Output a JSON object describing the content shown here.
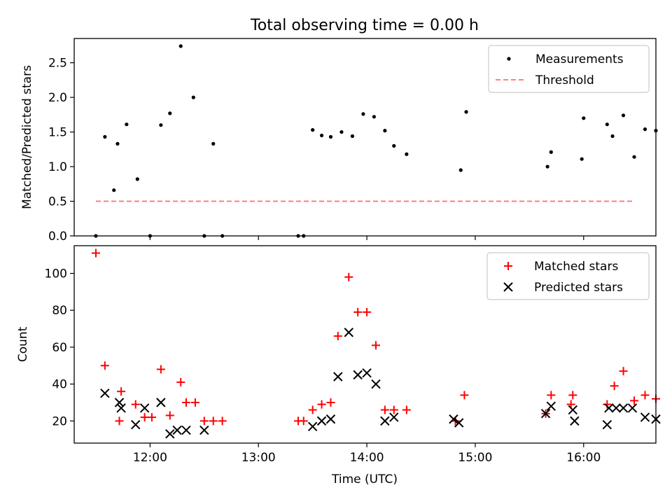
{
  "chart_data": [
    {
      "type": "scatter",
      "title": "Total observing time = 0.00 h",
      "xlabel": "",
      "ylabel": "Matched/Predicted stars",
      "xlim": [
        "11:18",
        "16:40"
      ],
      "ylim": [
        0,
        2.85
      ],
      "yticks": [
        0.0,
        0.5,
        1.0,
        1.5,
        2.0,
        2.5
      ],
      "ytick_labels": [
        "0.0",
        "0.5",
        "1.0",
        "1.5",
        "2.0",
        "2.5"
      ],
      "xticks": [
        "12:00",
        "13:00",
        "14:00",
        "15:00",
        "16:00"
      ],
      "show_xtick_labels": false,
      "legend_position": "upper right",
      "series": [
        {
          "name": "Measurements",
          "kind": "points",
          "color": "#000000",
          "x": [
            "11:30",
            "11:35",
            "11:40",
            "11:42",
            "11:47",
            "11:53",
            "12:00",
            "12:06",
            "12:11",
            "12:17",
            "12:24",
            "12:30",
            "12:35",
            "12:40",
            "13:22",
            "13:25",
            "13:30",
            "13:35",
            "13:40",
            "13:46",
            "13:52",
            "13:58",
            "14:04",
            "14:10",
            "14:15",
            "14:22",
            "14:52",
            "14:55",
            "15:40",
            "15:42",
            "15:59",
            "16:00",
            "16:13",
            "16:16",
            "16:22",
            "16:28",
            "16:34",
            "16:40"
          ],
          "y": [
            0.0,
            1.43,
            0.66,
            1.33,
            1.61,
            0.82,
            0.0,
            1.6,
            1.77,
            2.74,
            2.0,
            0.0,
            1.33,
            0.0,
            0.0,
            0.0,
            1.53,
            1.45,
            1.43,
            1.5,
            1.44,
            1.76,
            1.72,
            1.52,
            1.3,
            1.18,
            0.95,
            1.79,
            1.0,
            1.21,
            1.11,
            1.7,
            1.61,
            1.44,
            1.74,
            1.14,
            1.54,
            1.52
          ]
        },
        {
          "name": "Threshold",
          "kind": "dashed-line",
          "color": "#ff7f7f",
          "x": [
            "11:30",
            "16:27"
          ],
          "y": [
            0.5,
            0.5
          ]
        }
      ]
    },
    {
      "type": "scatter",
      "title": "",
      "xlabel": "Time (UTC)",
      "ylabel": "Count",
      "xlim": [
        "11:18",
        "16:40"
      ],
      "ylim": [
        8,
        115
      ],
      "yticks": [
        20,
        40,
        60,
        80,
        100
      ],
      "ytick_labels": [
        "20",
        "40",
        "60",
        "80",
        "100"
      ],
      "xticks": [
        "12:00",
        "13:00",
        "14:00",
        "15:00",
        "16:00"
      ],
      "xtick_labels": [
        "12:00",
        "13:00",
        "14:00",
        "15:00",
        "16:00"
      ],
      "legend_position": "upper right",
      "series": [
        {
          "name": "Matched stars",
          "kind": "plus",
          "color": "#ff0000",
          "x": [
            "11:30",
            "11:35",
            "11:43",
            "11:44",
            "11:52",
            "11:57",
            "12:01",
            "12:06",
            "12:11",
            "12:17",
            "12:20",
            "12:25",
            "12:30",
            "12:35",
            "12:40",
            "13:22",
            "13:25",
            "13:30",
            "13:35",
            "13:40",
            "13:44",
            "13:50",
            "13:55",
            "14:00",
            "14:05",
            "14:10",
            "14:15",
            "14:22",
            "14:49",
            "14:54",
            "15:39",
            "15:42",
            "15:53",
            "15:54",
            "16:13",
            "16:17",
            "16:22",
            "16:28",
            "16:34",
            "16:40"
          ],
          "y": [
            111,
            50,
            20,
            36,
            29,
            22,
            22,
            48,
            23,
            41,
            30,
            30,
            20,
            20,
            20,
            20,
            20,
            26,
            29,
            30,
            66,
            98,
            79,
            79,
            61,
            26,
            26,
            26,
            20,
            34,
            24,
            34,
            29,
            34,
            29,
            39,
            47,
            31,
            34,
            32
          ]
        },
        {
          "name": "Predicted stars",
          "kind": "x",
          "color": "#000000",
          "x": [
            "11:35",
            "11:43",
            "11:44",
            "11:52",
            "11:57",
            "12:06",
            "12:11",
            "12:15",
            "12:20",
            "12:30",
            "13:30",
            "13:35",
            "13:40",
            "13:44",
            "13:50",
            "13:55",
            "14:00",
            "14:05",
            "14:10",
            "14:15",
            "14:48",
            "14:51",
            "15:39",
            "15:42",
            "15:54",
            "15:55",
            "16:13",
            "16:14",
            "16:18",
            "16:22",
            "16:27",
            "16:34",
            "16:40"
          ],
          "y": [
            35,
            30,
            27,
            18,
            27,
            30,
            13,
            15,
            15,
            15,
            17,
            20,
            21,
            44,
            68,
            45,
            46,
            40,
            20,
            22,
            21,
            19,
            24,
            28,
            26,
            20,
            18,
            27,
            27,
            27,
            27,
            22,
            21
          ]
        }
      ]
    }
  ]
}
